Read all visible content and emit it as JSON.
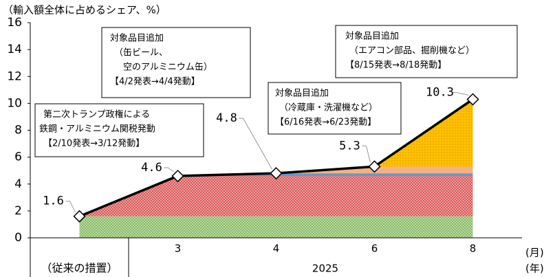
{
  "chart_data": {
    "type": "stacked_area_line",
    "y_label": "（輸入額全体に占めるシェア、%）",
    "categories": [
      null,
      "3",
      "4",
      "6",
      "8"
    ],
    "x_groups": [
      "（従来の措置）",
      "2025"
    ],
    "x_unit_labels": [
      "(月)",
      "(年)"
    ],
    "ylim": [
      0,
      16
    ],
    "yticks": [
      0,
      2,
      4,
      6,
      8,
      10,
      12,
      14,
      16
    ],
    "series": [
      {
        "color": "#a9d18e",
        "values": [
          1.6,
          1.6,
          1.6,
          1.6,
          1.6
        ]
      },
      {
        "color": "#e88080",
        "values": [
          0,
          3.0,
          3.0,
          3.0,
          3.0
        ]
      },
      {
        "color": "#5b9bd5",
        "values": [
          0,
          0,
          0.2,
          0.2,
          0.2
        ]
      },
      {
        "color": "#f4b183",
        "values": [
          0,
          0,
          0,
          0.5,
          0.5
        ]
      },
      {
        "color": "#ffc000",
        "values": [
          0,
          0,
          0,
          0,
          5.0
        ]
      }
    ],
    "total": {
      "color": "#000000",
      "values": [
        1.6,
        4.6,
        4.8,
        5.3,
        10.3
      ]
    },
    "annotations": [
      {
        "lines": [
          "第二次トランプ政権による",
          "鉄鋼・アルミニウム関税発動",
          "【2/10発表→3/12発動】"
        ]
      },
      {
        "lines": [
          "対象品目追加",
          "（缶ビール、",
          "　空のアルミニウム缶）",
          "【4/2発表→4/4発動】"
        ]
      },
      {
        "lines": [
          "対象品目追加",
          "（冷蔵庫・洗濯機など）",
          "【6/16発表→6/23発動】"
        ]
      },
      {
        "lines": [
          "対象品目追加",
          "（エアコン部品、掘削機など）",
          "【8/15発表→8/18発動】"
        ]
      }
    ]
  }
}
